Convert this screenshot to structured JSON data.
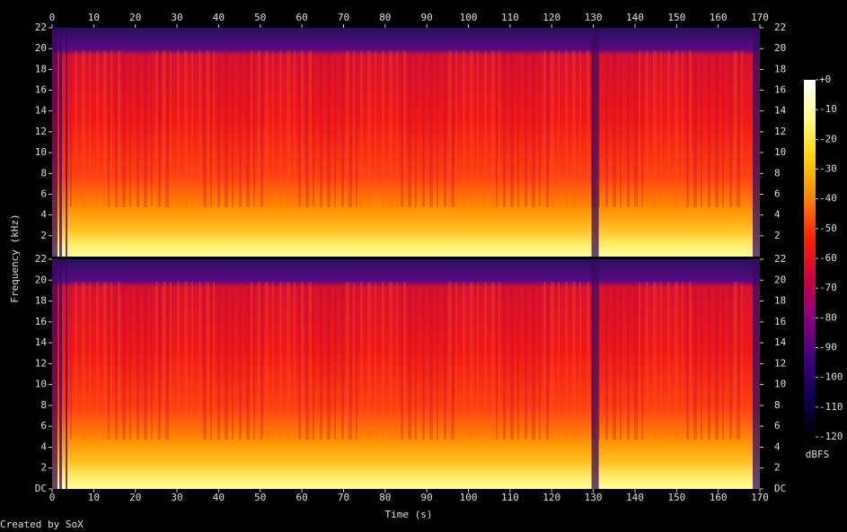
{
  "chart_data": {
    "type": "spectrogram",
    "x_label": "Time (s)",
    "y_label": "Frequency (kHz)",
    "xlim": [
      0,
      170
    ],
    "xticks": [
      0,
      10,
      20,
      30,
      40,
      50,
      60,
      70,
      80,
      90,
      100,
      110,
      120,
      130,
      140,
      150,
      160,
      170
    ],
    "channels": [
      {
        "ylim": [
          0,
          22
        ],
        "yticks": [
          2,
          4,
          6,
          8,
          10,
          12,
          14,
          16,
          18,
          20,
          22
        ]
      },
      {
        "ylim": [
          0,
          22
        ],
        "yticks": [
          {
            "value": 0,
            "label": "DC"
          },
          2,
          4,
          6,
          8,
          10,
          12,
          14,
          16,
          18,
          20,
          22
        ]
      }
    ],
    "colorbar": {
      "label": "dBFS",
      "zlim": [
        -120,
        0
      ],
      "zticks": [
        {
          "value": 0,
          "label": "+0"
        },
        -10,
        -20,
        -30,
        -40,
        -50,
        -60,
        -70,
        -80,
        -90,
        -100,
        -110,
        -120
      ],
      "colors": [
        "#ffffff",
        "#ffff80",
        "#ffd000",
        "#ff8000",
        "#ff2000",
        "#d00040",
        "#8a0080",
        "#400080",
        "#100050",
        "#000000"
      ]
    },
    "footer": "Created by SoX"
  }
}
